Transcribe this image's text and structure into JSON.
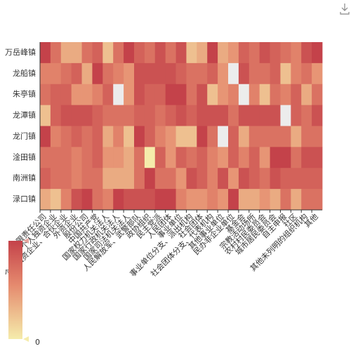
{
  "toolbox": {
    "download_icon": "download-icon"
  },
  "chart_data": {
    "type": "heatmap",
    "y_categories": [
      "万岳峰镇",
      "龙船镇",
      "朱亭镇",
      "龙潭镇",
      "龙门镇",
      "淦田镇",
      "南洲镇",
      "渌口镇"
    ],
    "x_categories": [
      "有限责任公司",
      "个人独资企业",
      "个人独资企业、合伙企业",
      "外资企业",
      "股份公司",
      "中国共产党",
      "国家权力机关法人",
      "国家行政机关法人",
      "国家司法机关法人",
      "人民解放军、武警部队",
      "政协组织",
      "民主党派",
      "人民团体",
      "事业单位",
      "事业单位分支、派出机构",
      "社会团体",
      "社会团体分支、代表机构",
      "其他事业单位",
      "民办非企业单位",
      "基金会",
      "宗教活动场所",
      "农村村民委员会",
      "城市居民委员会",
      "自主申报",
      "社区",
      "其他未列明的组织机构",
      "其他"
    ],
    "visual_map": {
      "min": 0,
      "min_label": "0",
      "max_label": "",
      "colors": [
        "#f5ecab",
        "#e58a6e",
        "#c4424a"
      ]
    },
    "empty_color": "#ececec",
    "values": [
      [
        9,
        6,
        3,
        3,
        6,
        7,
        2,
        6,
        9,
        7,
        6,
        8,
        6,
        8,
        2,
        3,
        9,
        3,
        4,
        7,
        6,
        8,
        7,
        6,
        5,
        8,
        9
      ],
      [
        5,
        5,
        6,
        7,
        3,
        9,
        6,
        5,
        4,
        8,
        8,
        8,
        8,
        7,
        6,
        6,
        7,
        4,
        null,
        8,
        6,
        6,
        7,
        2,
        5,
        6,
        4
      ],
      [
        6,
        7,
        7,
        4,
        4,
        5,
        7,
        null,
        4,
        8,
        7,
        7,
        9,
        9,
        6,
        8,
        2,
        4,
        5,
        null,
        5,
        2,
        6,
        5,
        7,
        3,
        6
      ],
      [
        2,
        7,
        8,
        8,
        8,
        7,
        6,
        6,
        6,
        7,
        7,
        6,
        7,
        8,
        7,
        8,
        8,
        8,
        6,
        8,
        8,
        8,
        8,
        null,
        7,
        6,
        8
      ],
      [
        9,
        5,
        6,
        7,
        6,
        7,
        3,
        5,
        2,
        9,
        7,
        5,
        4,
        2,
        2,
        9,
        6,
        null,
        7,
        3,
        6,
        6,
        6,
        6,
        3,
        6,
        6
      ],
      [
        6,
        6,
        6,
        5,
        6,
        7,
        4,
        4,
        3,
        6,
        0,
        7,
        4,
        7,
        6,
        7,
        5,
        4,
        7,
        5,
        7,
        4,
        9,
        9,
        6,
        8,
        8
      ],
      [
        7,
        6,
        6,
        5,
        6,
        6,
        3,
        3,
        3,
        6,
        9,
        6,
        6,
        4,
        8,
        7,
        5,
        8,
        4,
        8,
        7,
        6,
        8,
        7,
        7,
        7,
        7
      ],
      [
        3,
        2,
        5,
        8,
        9,
        6,
        5,
        9,
        8,
        8,
        8,
        9,
        9,
        5,
        4,
        4,
        5,
        4,
        9,
        3,
        3,
        4,
        3,
        6,
        3,
        6,
        6
      ]
    ]
  }
}
